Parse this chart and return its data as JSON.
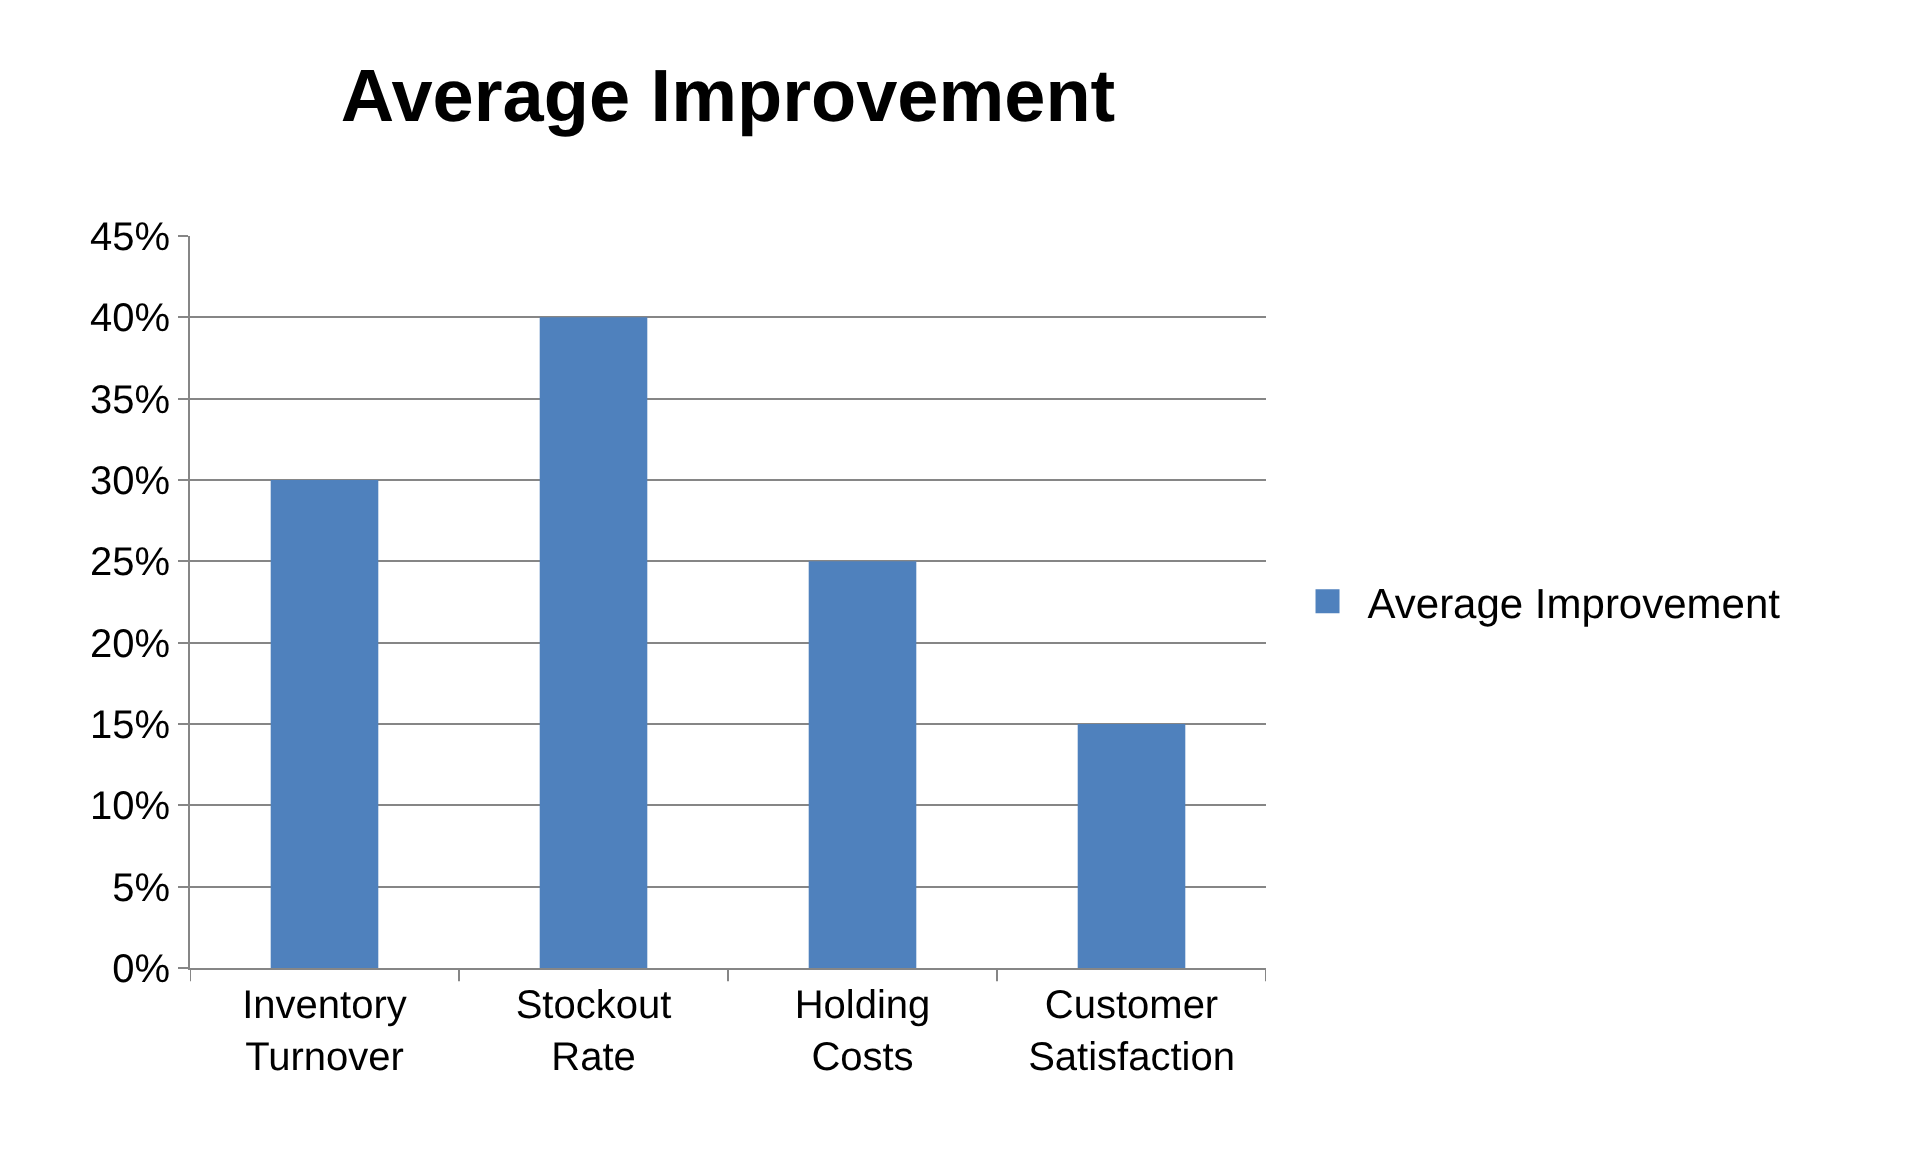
{
  "chart_data": {
    "type": "bar",
    "title": "Average Improvement",
    "categories": [
      "Inventory Turnover",
      "Stockout Rate",
      "Holding Costs",
      "Customer Satisfaction"
    ],
    "series": [
      {
        "name": "Average Improvement",
        "color": "#4f81bd",
        "values": [
          30,
          40,
          25,
          15
        ]
      }
    ],
    "ylim": [
      0,
      45
    ],
    "yticks": [
      {
        "value": 0,
        "label": "0%"
      },
      {
        "value": 5,
        "label": "5%"
      },
      {
        "value": 10,
        "label": "10%"
      },
      {
        "value": 15,
        "label": "15%"
      },
      {
        "value": 20,
        "label": "20%"
      },
      {
        "value": 25,
        "label": "25%"
      },
      {
        "value": 30,
        "label": "30%"
      },
      {
        "value": 35,
        "label": "35%"
      },
      {
        "value": 40,
        "label": "40%"
      },
      {
        "value": 45,
        "label": "45%"
      }
    ],
    "grid": "y",
    "legend": "right"
  }
}
